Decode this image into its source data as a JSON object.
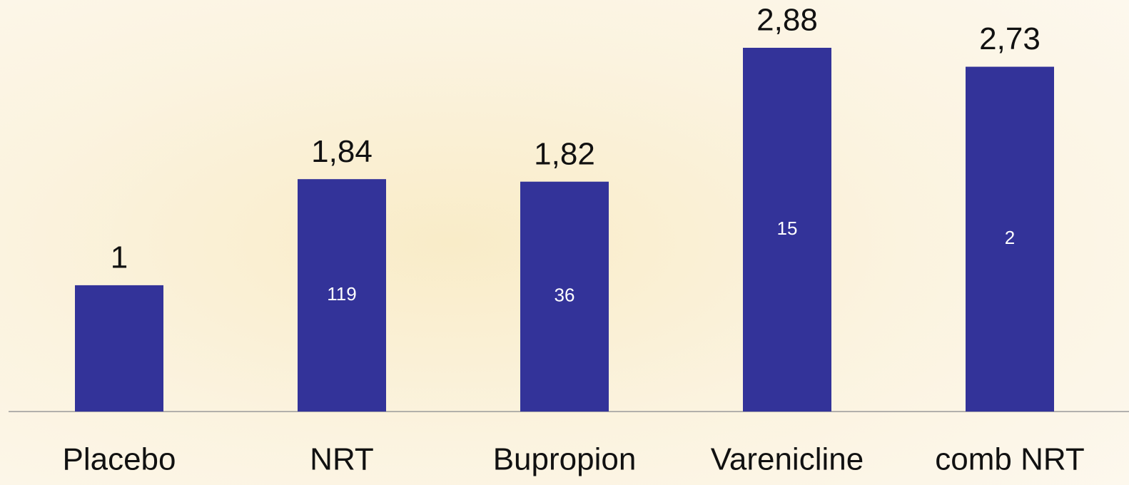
{
  "chart_data": {
    "type": "bar",
    "categories": [
      "Placebo",
      "NRT",
      "Bupropion",
      "Varenicline",
      "comb NRT"
    ],
    "values": [
      1,
      1.84,
      1.82,
      2.88,
      2.73
    ],
    "value_labels": [
      "1",
      "1,84",
      "1,82",
      "2,88",
      "2,73"
    ],
    "counts": [
      null,
      119,
      36,
      15,
      2
    ],
    "color": "#333399"
  }
}
